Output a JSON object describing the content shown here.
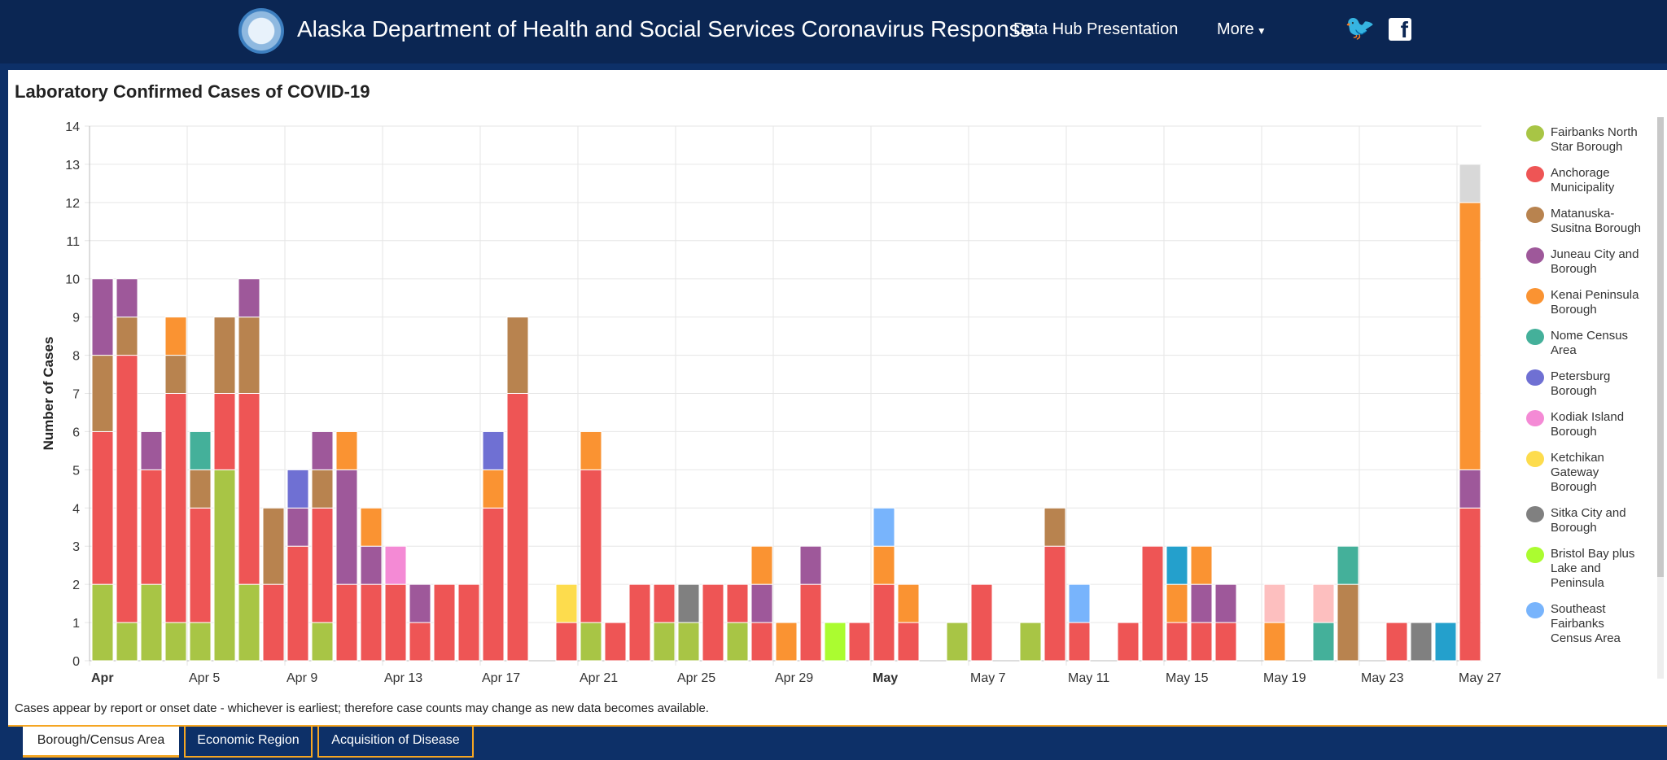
{
  "header": {
    "title": "Alaska Department of Health and Social Services Coronavirus Response",
    "nav_hub": "Data Hub Presentation",
    "nav_more": "More",
    "more_icon": "caret-down",
    "twitter": "twitter-icon",
    "facebook": "facebook-icon"
  },
  "panel": {
    "title": "Laboratory Confirmed Cases of COVID-19",
    "note": "Cases appear by report or onset date - whichever is earliest; therefore case counts may change as new data becomes available."
  },
  "tabs": [
    {
      "label": "Borough/Census Area",
      "active": true
    },
    {
      "label": "Economic Region",
      "active": false
    },
    {
      "label": "Acquisition of Disease",
      "active": false
    }
  ],
  "chart_data": {
    "type": "bar",
    "stacked": true,
    "title": "",
    "xlabel": "",
    "ylabel": "Number of Cases",
    "ylim": [
      0,
      14
    ],
    "yticks": [
      0,
      1,
      2,
      3,
      4,
      5,
      6,
      7,
      8,
      9,
      10,
      11,
      12,
      13,
      14
    ],
    "grid": true,
    "legend": "right",
    "xticks": [
      {
        "date": "Apr 1",
        "label": "Apr",
        "bold": true
      },
      {
        "date": "Apr 5",
        "label": "Apr 5"
      },
      {
        "date": "Apr 9",
        "label": "Apr 9"
      },
      {
        "date": "Apr 13",
        "label": "Apr 13"
      },
      {
        "date": "Apr 17",
        "label": "Apr 17"
      },
      {
        "date": "Apr 21",
        "label": "Apr 21"
      },
      {
        "date": "Apr 25",
        "label": "Apr 25"
      },
      {
        "date": "Apr 29",
        "label": "Apr 29"
      },
      {
        "date": "May 3",
        "label": "May",
        "bold": true
      },
      {
        "date": "May 7",
        "label": "May 7"
      },
      {
        "date": "May 11",
        "label": "May 11"
      },
      {
        "date": "May 15",
        "label": "May 15"
      },
      {
        "date": "May 19",
        "label": "May 19"
      },
      {
        "date": "May 23",
        "label": "May 23"
      },
      {
        "date": "May 27",
        "label": "May 27"
      }
    ],
    "categories": [
      "Apr 1",
      "Apr 2",
      "Apr 3",
      "Apr 4",
      "Apr 5",
      "Apr 6",
      "Apr 7",
      "Apr 8",
      "Apr 9",
      "Apr 10",
      "Apr 11",
      "Apr 12",
      "Apr 13",
      "Apr 14",
      "Apr 15",
      "Apr 16",
      "Apr 17",
      "Apr 18",
      "Apr 19",
      "Apr 20",
      "Apr 21",
      "Apr 22",
      "Apr 23",
      "Apr 24",
      "Apr 25",
      "Apr 26",
      "Apr 27",
      "Apr 28",
      "Apr 29",
      "Apr 30",
      "May 1",
      "May 2",
      "May 3",
      "May 4",
      "May 5",
      "May 6",
      "May 7",
      "May 8",
      "May 9",
      "May 10",
      "May 11",
      "May 12",
      "May 13",
      "May 14",
      "May 15",
      "May 16",
      "May 17",
      "May 18",
      "May 19",
      "May 20",
      "May 21",
      "May 22",
      "May 23",
      "May 24",
      "May 25",
      "May 26",
      "May 27"
    ],
    "series": [
      {
        "name": "Fairbanks North Star Borough",
        "color": "#a8c545",
        "values": [
          2,
          1,
          2,
          1,
          1,
          5,
          2,
          0,
          0,
          1,
          0,
          0,
          0,
          0,
          0,
          0,
          0,
          0,
          0,
          0,
          1,
          0,
          0,
          1,
          1,
          0,
          1,
          0,
          0,
          0,
          0,
          0,
          0,
          0,
          0,
          1,
          0,
          0,
          1,
          0,
          0,
          0,
          0,
          0,
          0,
          0,
          0,
          0,
          0,
          0,
          0,
          0,
          0,
          0,
          0,
          0,
          0
        ]
      },
      {
        "name": "Anchorage Municipality",
        "color": "#ee5555",
        "values": [
          4,
          7,
          3,
          6,
          3,
          2,
          5,
          2,
          3,
          3,
          2,
          2,
          2,
          1,
          2,
          2,
          4,
          7,
          0,
          1,
          4,
          1,
          2,
          1,
          0,
          2,
          1,
          1,
          0,
          2,
          0,
          1,
          2,
          1,
          0,
          0,
          2,
          0,
          0,
          3,
          1,
          0,
          1,
          3,
          1,
          1,
          1,
          0,
          0,
          0,
          0,
          0,
          0,
          1,
          0,
          0,
          4
        ]
      },
      {
        "name": "Matanuska-Susitna Borough",
        "color": "#b8834f",
        "values": [
          2,
          1,
          0,
          1,
          1,
          2,
          2,
          2,
          0,
          1,
          0,
          0,
          0,
          0,
          0,
          0,
          0,
          2,
          0,
          0,
          0,
          0,
          0,
          0,
          0,
          0,
          0,
          0,
          0,
          0,
          0,
          0,
          0,
          0,
          0,
          0,
          0,
          0,
          0,
          1,
          0,
          0,
          0,
          0,
          0,
          0,
          0,
          0,
          0,
          0,
          0,
          2,
          0,
          0,
          0,
          0,
          0
        ]
      },
      {
        "name": "Juneau City and Borough",
        "color": "#9e589a",
        "values": [
          2,
          1,
          1,
          0,
          0,
          0,
          1,
          0,
          1,
          1,
          3,
          1,
          0,
          1,
          0,
          0,
          0,
          0,
          0,
          0,
          0,
          0,
          0,
          0,
          0,
          0,
          0,
          1,
          0,
          1,
          0,
          0,
          0,
          0,
          0,
          0,
          0,
          0,
          0,
          0,
          0,
          0,
          0,
          0,
          0,
          1,
          1,
          0,
          0,
          0,
          0,
          0,
          0,
          0,
          0,
          0,
          1
        ]
      },
      {
        "name": "Kenai Peninsula Borough",
        "color": "#fa9332",
        "values": [
          0,
          0,
          0,
          1,
          0,
          0,
          0,
          0,
          0,
          0,
          1,
          1,
          0,
          0,
          0,
          0,
          1,
          0,
          0,
          0,
          1,
          0,
          0,
          0,
          0,
          0,
          0,
          1,
          1,
          0,
          0,
          0,
          1,
          1,
          0,
          0,
          0,
          0,
          0,
          0,
          0,
          0,
          0,
          0,
          1,
          1,
          0,
          0,
          1,
          0,
          0,
          0,
          0,
          0,
          0,
          0,
          7
        ]
      },
      {
        "name": "",
        "color": "#24a0cc",
        "values": [
          0,
          0,
          0,
          0,
          0,
          0,
          0,
          0,
          0,
          0,
          0,
          0,
          0,
          0,
          0,
          0,
          0,
          0,
          0,
          0,
          0,
          0,
          0,
          0,
          0,
          0,
          0,
          0,
          0,
          0,
          0,
          0,
          0,
          0,
          0,
          0,
          0,
          0,
          0,
          0,
          0,
          0,
          0,
          0,
          1,
          0,
          0,
          0,
          0,
          0,
          0,
          0,
          0,
          0,
          0,
          1,
          0
        ]
      },
      {
        "name": "Nome Census Area",
        "color": "#44b09a",
        "values": [
          0,
          0,
          0,
          0,
          1,
          0,
          0,
          0,
          0,
          0,
          0,
          0,
          0,
          0,
          0,
          0,
          0,
          0,
          0,
          0,
          0,
          0,
          0,
          0,
          0,
          0,
          0,
          0,
          0,
          0,
          0,
          0,
          0,
          0,
          0,
          0,
          0,
          0,
          0,
          0,
          0,
          0,
          0,
          0,
          0,
          0,
          0,
          0,
          0,
          0,
          1,
          1,
          0,
          0,
          0,
          0,
          0
        ]
      },
      {
        "name": "Petersburg Borough",
        "color": "#6f70d3",
        "values": [
          0,
          0,
          0,
          0,
          0,
          0,
          0,
          0,
          1,
          0,
          0,
          0,
          0,
          0,
          0,
          0,
          1,
          0,
          0,
          0,
          0,
          0,
          0,
          0,
          0,
          0,
          0,
          0,
          0,
          0,
          0,
          0,
          0,
          0,
          0,
          0,
          0,
          0,
          0,
          0,
          0,
          0,
          0,
          0,
          0,
          0,
          0,
          0,
          0,
          0,
          0,
          0,
          0,
          0,
          0,
          0,
          0
        ]
      },
      {
        "name": "Kodiak Island Borough",
        "color": "#f48ad5",
        "values": [
          0,
          0,
          0,
          0,
          0,
          0,
          0,
          0,
          0,
          0,
          0,
          0,
          1,
          0,
          0,
          0,
          0,
          0,
          0,
          0,
          0,
          0,
          0,
          0,
          0,
          0,
          0,
          0,
          0,
          0,
          0,
          0,
          0,
          0,
          0,
          0,
          0,
          0,
          0,
          0,
          0,
          0,
          0,
          0,
          0,
          0,
          0,
          0,
          0,
          0,
          0,
          0,
          0,
          0,
          0,
          0,
          0
        ]
      },
      {
        "name": "Ketchikan Gateway Borough",
        "color": "#fddc4d",
        "values": [
          0,
          0,
          0,
          0,
          0,
          0,
          0,
          0,
          0,
          0,
          0,
          0,
          0,
          0,
          0,
          0,
          0,
          0,
          0,
          1,
          0,
          0,
          0,
          0,
          0,
          0,
          0,
          0,
          0,
          0,
          0,
          0,
          0,
          0,
          0,
          0,
          0,
          0,
          0,
          0,
          0,
          0,
          0,
          0,
          0,
          0,
          0,
          0,
          0,
          0,
          0,
          0,
          0,
          0,
          0,
          0,
          0
        ]
      },
      {
        "name": "Sitka City and Borough",
        "color": "#808080",
        "values": [
          0,
          0,
          0,
          0,
          0,
          0,
          0,
          0,
          0,
          0,
          0,
          0,
          0,
          0,
          0,
          0,
          0,
          0,
          0,
          0,
          0,
          0,
          0,
          0,
          1,
          0,
          0,
          0,
          0,
          0,
          0,
          0,
          0,
          0,
          0,
          0,
          0,
          0,
          0,
          0,
          0,
          0,
          0,
          0,
          0,
          0,
          0,
          0,
          0,
          0,
          0,
          0,
          0,
          0,
          1,
          0,
          0
        ]
      },
      {
        "name": "Bristol Bay plus Lake and Peninsula",
        "color": "#abfc30",
        "values": [
          0,
          0,
          0,
          0,
          0,
          0,
          0,
          0,
          0,
          0,
          0,
          0,
          0,
          0,
          0,
          0,
          0,
          0,
          0,
          0,
          0,
          0,
          0,
          0,
          0,
          0,
          0,
          0,
          0,
          0,
          1,
          0,
          0,
          0,
          0,
          0,
          0,
          0,
          0,
          0,
          0,
          0,
          0,
          0,
          0,
          0,
          0,
          0,
          0,
          0,
          0,
          0,
          0,
          0,
          0,
          0,
          0
        ]
      },
      {
        "name": "Southeast Fairbanks Census Area",
        "color": "#78b4fc",
        "values": [
          0,
          0,
          0,
          0,
          0,
          0,
          0,
          0,
          0,
          0,
          0,
          0,
          0,
          0,
          0,
          0,
          0,
          0,
          0,
          0,
          0,
          0,
          0,
          0,
          0,
          0,
          0,
          0,
          0,
          0,
          0,
          0,
          1,
          0,
          0,
          0,
          0,
          0,
          0,
          0,
          1,
          0,
          0,
          0,
          0,
          0,
          0,
          0,
          0,
          0,
          0,
          0,
          0,
          0,
          0,
          0,
          0
        ]
      },
      {
        "name": "",
        "color": "#fdbfbf",
        "values": [
          0,
          0,
          0,
          0,
          0,
          0,
          0,
          0,
          0,
          0,
          0,
          0,
          0,
          0,
          0,
          0,
          0,
          0,
          0,
          0,
          0,
          0,
          0,
          0,
          0,
          0,
          0,
          0,
          0,
          0,
          0,
          0,
          0,
          0,
          0,
          0,
          0,
          0,
          0,
          0,
          0,
          0,
          0,
          0,
          0,
          0,
          0,
          0,
          1,
          0,
          1,
          0,
          0,
          0,
          0,
          0,
          0
        ]
      },
      {
        "name": "",
        "color": "#d8d8d8",
        "values": [
          0,
          0,
          0,
          0,
          0,
          0,
          0,
          0,
          0,
          0,
          0,
          0,
          0,
          0,
          0,
          0,
          0,
          0,
          0,
          0,
          0,
          0,
          0,
          0,
          0,
          0,
          0,
          0,
          0,
          0,
          0,
          0,
          0,
          0,
          0,
          0,
          0,
          0,
          0,
          0,
          0,
          0,
          0,
          0,
          0,
          0,
          0,
          0,
          0,
          0,
          0,
          0,
          0,
          0,
          0,
          0,
          1
        ]
      }
    ],
    "legend_items": [
      "Fairbanks North Star Borough",
      "Anchorage Municipality",
      "Matanuska-Susitna Borough",
      "Juneau City and Borough",
      "Kenai Peninsula Borough",
      "Nome Census Area",
      "Petersburg Borough",
      "Kodiak Island Borough",
      "Ketchikan Gateway Borough",
      "Sitka City and Borough",
      "Bristol Bay plus Lake and Peninsula",
      "Southeast Fairbanks Census Area"
    ]
  }
}
